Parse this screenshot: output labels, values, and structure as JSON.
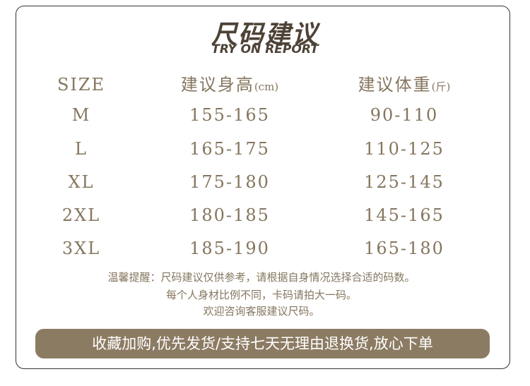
{
  "header": {
    "title": "尺码建议",
    "subtitle": "TRY ON REPORT"
  },
  "table": {
    "columns": [
      {
        "text": "SIZE"
      },
      {
        "text": "建议身高",
        "unit": "(cm)"
      },
      {
        "text": "建议体重",
        "unit": "(斤)"
      }
    ],
    "rows": [
      [
        "M",
        "155-165",
        "90-110"
      ],
      [
        "L",
        "165-175",
        "110-125"
      ],
      [
        "XL",
        "175-180",
        "125-145"
      ],
      [
        "2XL",
        "180-185",
        "145-165"
      ],
      [
        "3XL",
        "185-190",
        "165-180"
      ]
    ]
  },
  "notes": [
    "温馨提醒：尺码建议仅供参考，请根据自身情况选择合适的码数。",
    "每个人身材比例不同，卡码请拍大一码。",
    "欢迎咨询客服建议尺码。"
  ],
  "banner": "收藏加购,优先发货/支持七天无理由退换货,放心下单"
}
